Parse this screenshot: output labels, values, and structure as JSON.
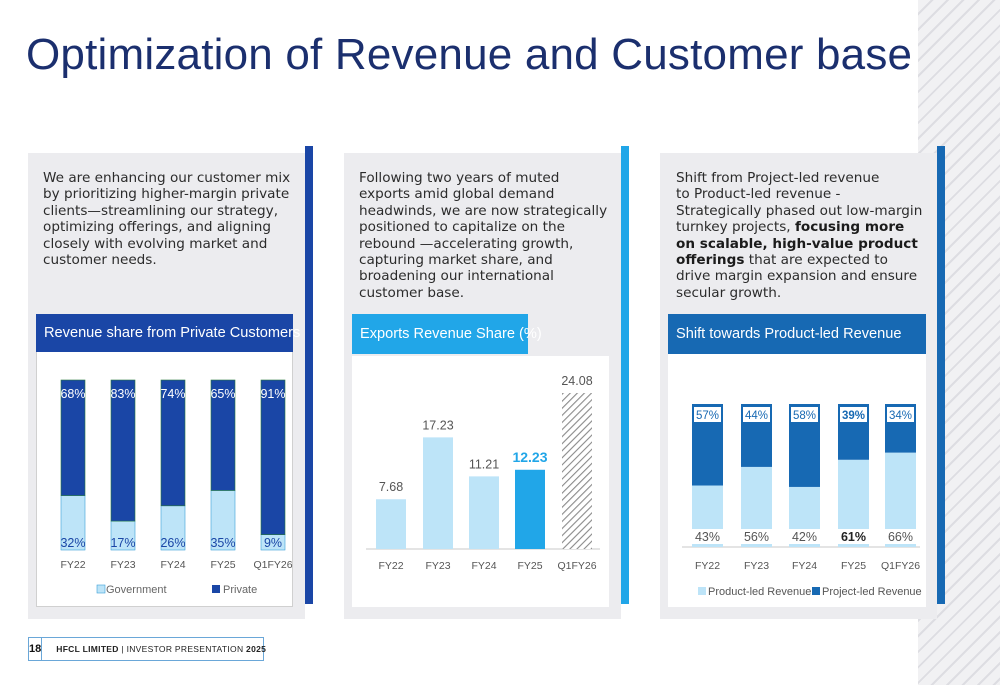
{
  "page": {
    "title": "Optimization of Revenue and Customer base",
    "footer": {
      "page_number": "18",
      "company": "HFCL LIMITED",
      "separator": " | ",
      "label": "INVESTOR PRESENTATION ",
      "year": "2025"
    }
  },
  "cards": [
    {
      "text": "We are enhancing our customer mix\nby prioritizing higher-margin private\nclients—streamlining our strategy,\noptimizing offerings, and aligning\nclosely with evolving market and\ncustomer needs.",
      "chart_title": "Revenue share from Private Customers",
      "legend": [
        "Government",
        "Private"
      ]
    },
    {
      "text": "Following two years of muted\nexports amid global demand\nheadwinds, we are now strategically\npositioned to capitalize on the\nrebound —accelerating growth,\ncapturing market share, and\nbroadening our international\ncustomer base.",
      "chart_title": "Exports Revenue Share (%)"
    },
    {
      "text_pre": "Shift from Project-led revenue\nto Product-led revenue -\nStrategically phased out low-margin\nturnkey projects, ",
      "text_bold": "focusing more\non scalable, high-value product\nofferings",
      "text_post": " that are expected to\ndrive margin expansion and ensure\nsecular growth.",
      "chart_title": "Shift towards Product-led Revenue",
      "legend": [
        "Product-led Revenue",
        "Project-led Revenue"
      ]
    }
  ],
  "colors": {
    "title": "#1b2f6e",
    "dark_blue": "#1a46a6",
    "light_blue": "#bde4f8",
    "bright_blue": "#21a6e8",
    "mid_blue": "#1769b3",
    "accent_blue": "#3f8fe0"
  },
  "chart_data": [
    {
      "type": "bar",
      "stacked": true,
      "title": "Revenue share from Private Customers",
      "categories": [
        "FY22",
        "FY23",
        "FY24",
        "FY25",
        "Q1FY26"
      ],
      "series": [
        {
          "name": "Government",
          "values": [
            32,
            17,
            26,
            35,
            9
          ],
          "labels": [
            "32%",
            "17%",
            "26%",
            "35%",
            "9%"
          ]
        },
        {
          "name": "Private",
          "values": [
            68,
            83,
            74,
            65,
            91
          ],
          "labels": [
            "68%",
            "83%",
            "74%",
            "65%",
            "91%"
          ]
        }
      ],
      "ylim": [
        0,
        100
      ],
      "legend": "bottom"
    },
    {
      "type": "bar",
      "title": "Exports Revenue Share (%)",
      "categories": [
        "FY22",
        "FY23",
        "FY24",
        "FY25",
        "Q1FY26"
      ],
      "values": [
        7.68,
        17.23,
        11.21,
        12.23,
        24.08
      ],
      "labels": [
        "7.68",
        "17.23",
        "11.21",
        "12.23",
        "24.08"
      ],
      "highlight": "FY25",
      "ylim": [
        0,
        26
      ]
    },
    {
      "type": "bar",
      "stacked": true,
      "title": "Shift towards Product-led Revenue",
      "categories": [
        "FY22",
        "FY23",
        "FY24",
        "FY25",
        "Q1FY26"
      ],
      "series": [
        {
          "name": "Product-led Revenue",
          "values": [
            43,
            56,
            42,
            61,
            66
          ],
          "labels": [
            "43%",
            "56%",
            "42%",
            "61%",
            "66%"
          ]
        },
        {
          "name": "Project-led Revenue",
          "values": [
            57,
            44,
            58,
            39,
            34
          ],
          "labels": [
            "57%",
            "44%",
            "58%",
            "39%",
            "34%"
          ]
        }
      ],
      "highlight": "FY25",
      "ylim": [
        0,
        100
      ],
      "legend": "bottom"
    }
  ]
}
